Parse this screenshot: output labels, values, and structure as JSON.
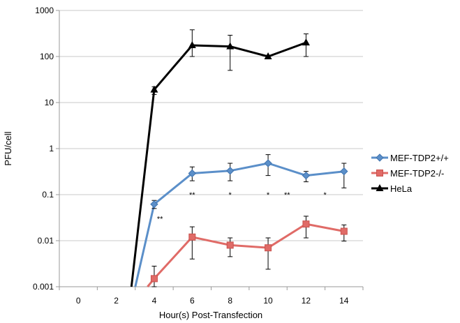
{
  "chart_data": {
    "type": "line",
    "title": "",
    "xlabel": "Hour(s) Post-Transfection",
    "ylabel": "PFU/cell",
    "y_scale": "log",
    "ylim": [
      0.001,
      1000
    ],
    "xlim": [
      -1,
      15
    ],
    "y_ticks": [
      {
        "value": 0.001,
        "label": "0.001"
      },
      {
        "value": 0.01,
        "label": "0.01"
      },
      {
        "value": 0.1,
        "label": "0.1"
      },
      {
        "value": 1,
        "label": "1"
      },
      {
        "value": 10,
        "label": "10"
      },
      {
        "value": 100,
        "label": "100"
      },
      {
        "value": 1000,
        "label": "1000"
      }
    ],
    "x_ticks": [
      {
        "value": 0,
        "label": "0"
      },
      {
        "value": 2,
        "label": "2"
      },
      {
        "value": 4,
        "label": "4"
      },
      {
        "value": 6,
        "label": "6"
      },
      {
        "value": 8,
        "label": "8"
      },
      {
        "value": 10,
        "label": "10"
      },
      {
        "value": 12,
        "label": "12"
      },
      {
        "value": 14,
        "label": "14"
      }
    ],
    "grid": "horizontal",
    "legend_position": "right",
    "series": [
      {
        "name": "MEF-TDP2+/+",
        "color": "#5b8fc9",
        "marker": "diamond",
        "points": [
          {
            "x": 4,
            "y": 0.062,
            "err_low": 0.05,
            "err_high": 0.075
          },
          {
            "x": 6,
            "y": 0.29,
            "err_low": 0.2,
            "err_high": 0.4
          },
          {
            "x": 8,
            "y": 0.33,
            "err_low": 0.2,
            "err_high": 0.48
          },
          {
            "x": 10,
            "y": 0.48,
            "err_low": 0.26,
            "err_high": 0.74
          },
          {
            "x": 12,
            "y": 0.26,
            "err_low": 0.19,
            "err_high": 0.32
          },
          {
            "x": 14,
            "y": 0.32,
            "err_low": 0.14,
            "err_high": 0.48
          }
        ],
        "entry_from": {
          "x": 3,
          "y": 0.001
        }
      },
      {
        "name": "MEF-TDP2-/-",
        "color": "#e06b67",
        "marker": "square",
        "points": [
          {
            "x": 4,
            "y": 0.0015,
            "err_low": 0.001,
            "err_high": 0.0028
          },
          {
            "x": 6,
            "y": 0.012,
            "err_low": 0.004,
            "err_high": 0.02
          },
          {
            "x": 8,
            "y": 0.008,
            "err_low": 0.0045,
            "err_high": 0.0115
          },
          {
            "x": 10,
            "y": 0.007,
            "err_low": 0.0024,
            "err_high": 0.0115
          },
          {
            "x": 12,
            "y": 0.023,
            "err_low": 0.0115,
            "err_high": 0.034
          },
          {
            "x": 14,
            "y": 0.016,
            "err_low": 0.0098,
            "err_high": 0.022
          }
        ],
        "entry_from": {
          "x": 3.65,
          "y": 0.001
        }
      },
      {
        "name": "HeLa",
        "color": "#000000",
        "marker": "triangle",
        "points": [
          {
            "x": 4,
            "y": 19,
            "err_low": 15,
            "err_high": 22
          },
          {
            "x": 6,
            "y": 175,
            "err_low": 100,
            "err_high": 380
          },
          {
            "x": 8,
            "y": 165,
            "err_low": 50,
            "err_high": 290
          },
          {
            "x": 10,
            "y": 100,
            "err_low": 95,
            "err_high": 105
          },
          {
            "x": 12,
            "y": 200,
            "err_low": 100,
            "err_high": 310
          }
        ],
        "entry_from": {
          "x": 2.8,
          "y": 0.001
        }
      }
    ],
    "annotations": [
      {
        "text": "**",
        "x": 4.3,
        "y": 0.03
      },
      {
        "text": "**",
        "x": 6,
        "y": 0.1
      },
      {
        "text": "*",
        "x": 8,
        "y": 0.1
      },
      {
        "text": "*",
        "x": 10,
        "y": 0.1
      },
      {
        "text": "**",
        "x": 11,
        "y": 0.1
      },
      {
        "text": "*",
        "x": 13,
        "y": 0.1
      }
    ]
  }
}
